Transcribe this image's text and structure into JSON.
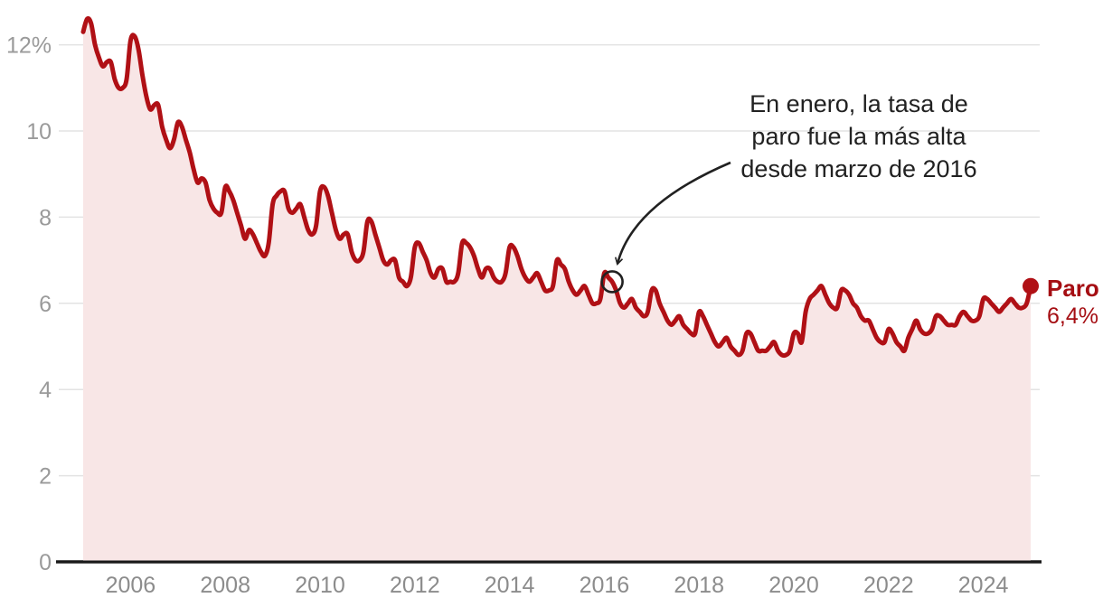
{
  "chart_data": {
    "type": "area",
    "title": "",
    "frequency": "monthly",
    "period_start": "2005-01",
    "period_end": "2025-01",
    "series": [
      {
        "name": "Paro",
        "values": [
          12.3,
          12.6,
          12.5,
          12.0,
          11.7,
          11.5,
          11.6,
          11.6,
          11.2,
          11.0,
          11.0,
          11.2,
          12.1,
          12.2,
          11.9,
          11.3,
          10.8,
          10.5,
          10.6,
          10.6,
          10.1,
          9.8,
          9.6,
          9.8,
          10.2,
          10.1,
          9.8,
          9.5,
          9.1,
          8.8,
          8.9,
          8.8,
          8.4,
          8.2,
          8.1,
          8.1,
          8.7,
          8.6,
          8.4,
          8.1,
          7.8,
          7.5,
          7.7,
          7.6,
          7.4,
          7.2,
          7.1,
          7.4,
          8.3,
          8.5,
          8.6,
          8.6,
          8.2,
          8.1,
          8.2,
          8.3,
          8.0,
          7.7,
          7.6,
          7.8,
          8.6,
          8.7,
          8.5,
          8.1,
          7.7,
          7.5,
          7.6,
          7.6,
          7.2,
          7.0,
          7.0,
          7.2,
          7.9,
          7.9,
          7.6,
          7.3,
          7.0,
          6.9,
          7.0,
          7.0,
          6.6,
          6.5,
          6.4,
          6.6,
          7.3,
          7.4,
          7.2,
          7.0,
          6.7,
          6.6,
          6.8,
          6.8,
          6.5,
          6.5,
          6.5,
          6.7,
          7.4,
          7.4,
          7.3,
          7.1,
          6.8,
          6.6,
          6.8,
          6.8,
          6.6,
          6.5,
          6.5,
          6.7,
          7.3,
          7.3,
          7.1,
          6.8,
          6.6,
          6.5,
          6.6,
          6.7,
          6.5,
          6.3,
          6.3,
          6.4,
          7.0,
          6.9,
          6.8,
          6.5,
          6.3,
          6.2,
          6.3,
          6.4,
          6.2,
          6.0,
          6.0,
          6.1,
          6.7,
          6.6,
          6.5,
          6.3,
          6.0,
          5.9,
          6.0,
          6.1,
          5.9,
          5.8,
          5.7,
          5.8,
          6.3,
          6.3,
          6.0,
          5.8,
          5.6,
          5.5,
          5.6,
          5.7,
          5.5,
          5.4,
          5.3,
          5.3,
          5.8,
          5.7,
          5.5,
          5.3,
          5.1,
          5.0,
          5.1,
          5.2,
          5.0,
          4.9,
          4.8,
          4.9,
          5.3,
          5.3,
          5.1,
          4.9,
          4.9,
          4.9,
          5.0,
          5.1,
          4.9,
          4.8,
          4.8,
          4.9,
          5.3,
          5.3,
          5.1,
          5.8,
          6.1,
          6.2,
          6.3,
          6.4,
          6.2,
          6.0,
          5.9,
          5.9,
          6.3,
          6.3,
          6.2,
          6.0,
          5.9,
          5.7,
          5.6,
          5.6,
          5.4,
          5.2,
          5.1,
          5.1,
          5.4,
          5.3,
          5.1,
          5.0,
          4.9,
          5.2,
          5.4,
          5.6,
          5.4,
          5.3,
          5.3,
          5.4,
          5.7,
          5.7,
          5.6,
          5.5,
          5.5,
          5.5,
          5.7,
          5.8,
          5.7,
          5.6,
          5.6,
          5.7,
          6.1,
          6.1,
          6.0,
          5.9,
          5.8,
          5.9,
          6.0,
          6.1,
          6.0,
          5.9,
          5.9,
          6.0,
          6.4
        ]
      }
    ],
    "x_tick_labels": [
      "2006",
      "2008",
      "2010",
      "2012",
      "2014",
      "2016",
      "2018",
      "2020",
      "2022",
      "2024"
    ],
    "x_tick_years": [
      2006,
      2008,
      2010,
      2012,
      2014,
      2016,
      2018,
      2020,
      2022,
      2024
    ],
    "y_tick_labels": [
      "12%",
      "10",
      "8",
      "6",
      "4",
      "2",
      "0"
    ],
    "y_tick_values": [
      12,
      10,
      8,
      6,
      4,
      2,
      0
    ],
    "ylim": [
      0,
      12.8
    ],
    "grid": "horizontal",
    "annotation": {
      "text_lines": [
        "En enero, la tasa de",
        "paro fue la más alta",
        "desde marzo de 2016"
      ],
      "highlight_month": "2016-03",
      "highlight_index": 134,
      "highlight_value": 6.5
    },
    "end_label": {
      "title": "Paro",
      "value": "6,4%",
      "numeric_value": 6.4
    }
  },
  "colors": {
    "line": "#b01015",
    "area_fill": "#f8e6e6",
    "end_dot": "#b01015",
    "end_label": "#a50e13",
    "grid": "#e3e3e3",
    "axis_line": "#1a1a1a",
    "y_tick_label": "#9a9a9a",
    "x_tick_label": "#8c8c8c",
    "annotation_ink": "#212121",
    "background": "#ffffff"
  }
}
